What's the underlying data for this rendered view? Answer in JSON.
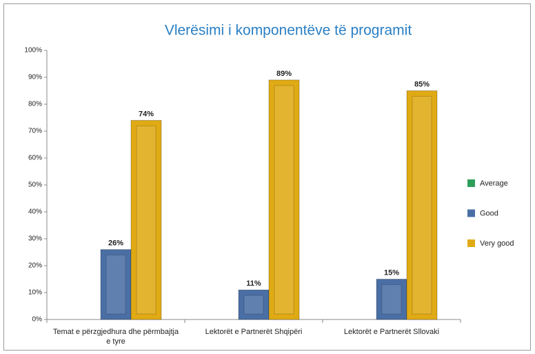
{
  "chart_data": {
    "type": "bar",
    "title": "Vlerësimi i komponentëve të programit",
    "categories": [
      "Temat e përzgjedhura dhe përmbajtja e tyre",
      "Lektorët e Partnerët Shqipëri",
      "Lektorët e Partnerët Sllovaki"
    ],
    "series": [
      {
        "name": "Average",
        "color": "#2e9e5b",
        "values": [
          0,
          0,
          0
        ]
      },
      {
        "name": "Good",
        "color": "#4a6fa5",
        "values": [
          26,
          11,
          15
        ],
        "value_labels": [
          "26%",
          "11%",
          "15%"
        ]
      },
      {
        "name": "Very good",
        "color": "#e0aa14",
        "values": [
          74,
          89,
          85
        ],
        "value_labels": [
          "74%",
          "89%",
          "85%"
        ]
      }
    ],
    "ylim": [
      0,
      100
    ],
    "yticks": [
      {
        "value": 0,
        "label": "0%"
      },
      {
        "value": 10,
        "label": "10%"
      },
      {
        "value": 20,
        "label": "20%"
      },
      {
        "value": 30,
        "label": "30%"
      },
      {
        "value": 40,
        "label": "40%"
      },
      {
        "value": 50,
        "label": "50%"
      },
      {
        "value": 60,
        "label": "60%"
      },
      {
        "value": 70,
        "label": "70%"
      },
      {
        "value": 80,
        "label": "80%"
      },
      {
        "value": 90,
        "label": "90%"
      },
      {
        "value": 100,
        "label": "100%"
      }
    ],
    "legend": "right"
  }
}
